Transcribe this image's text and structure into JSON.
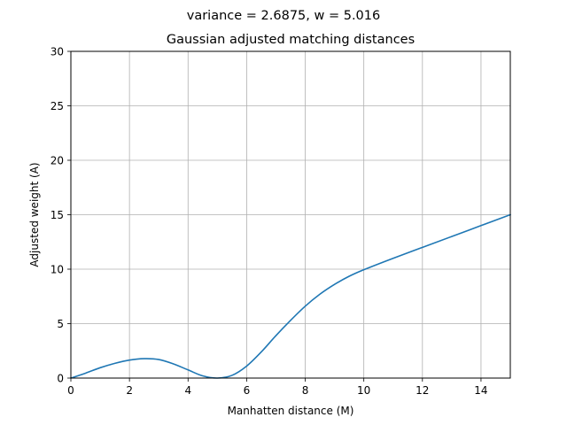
{
  "chart_data": {
    "type": "line",
    "suptitle": "variance = 2.6875, w = 5.016",
    "title": "Gaussian adjusted matching distances",
    "xlabel": "Manhatten distance (M)",
    "ylabel": "Adjusted weight (A)",
    "xlim": [
      0,
      15
    ],
    "ylim": [
      0,
      30
    ],
    "xticks": [
      0,
      2,
      4,
      6,
      8,
      10,
      12,
      14
    ],
    "yticks": [
      0,
      5,
      10,
      15,
      20,
      25,
      30
    ],
    "grid": true,
    "colors": {
      "line": "#1f77b4",
      "grid": "#b0b0b0",
      "axes": "#000000"
    },
    "series": [
      {
        "x": [
          0,
          0.5,
          1,
          1.5,
          2,
          2.5,
          3,
          3.5,
          4,
          4.5,
          5,
          5.5,
          6,
          6.5,
          7,
          7.5,
          8,
          8.5,
          9,
          9.5,
          10,
          11,
          12,
          13,
          14,
          15
        ],
        "y": [
          0,
          0.45,
          0.95,
          1.35,
          1.65,
          1.78,
          1.7,
          1.3,
          0.75,
          0.2,
          0.0,
          0.25,
          1.1,
          2.4,
          3.9,
          5.3,
          6.6,
          7.7,
          8.6,
          9.35,
          9.95,
          11.0,
          12.0,
          13.0,
          14.0,
          15.0
        ]
      }
    ]
  }
}
